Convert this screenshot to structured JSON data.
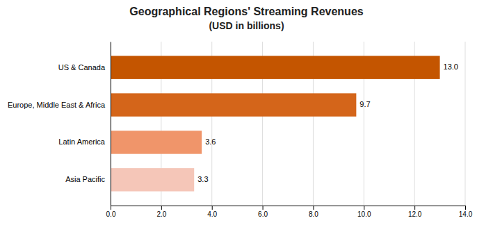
{
  "chart_data": {
    "type": "bar",
    "orientation": "horizontal",
    "title": "Geographical Regions' Streaming Revenues",
    "subtitle": "(USD in billions)",
    "categories": [
      "US & Canada",
      "Europe, Middle East & Africa",
      "Latin America",
      "Asia Pacific"
    ],
    "values": [
      13.0,
      9.7,
      3.6,
      3.3
    ],
    "value_labels": [
      "13.0",
      "9.7",
      "3.6",
      "3.3"
    ],
    "data_labels": true,
    "colors": [
      "#c45500",
      "#d4651a",
      "#f0956a",
      "#f5c6b8"
    ],
    "xlim": [
      0,
      14.0
    ],
    "xticks": [
      {
        "value": 0.0,
        "label": "0.0"
      },
      {
        "value": 2.0,
        "label": "2.0"
      },
      {
        "value": 4.0,
        "label": "4.0"
      },
      {
        "value": 6.0,
        "label": "6.0"
      },
      {
        "value": 8.0,
        "label": "8.0"
      },
      {
        "value": 10.0,
        "label": "10.0"
      },
      {
        "value": 12.0,
        "label": "12.0"
      },
      {
        "value": 14.0,
        "label": "14.0"
      }
    ],
    "grid": true
  }
}
